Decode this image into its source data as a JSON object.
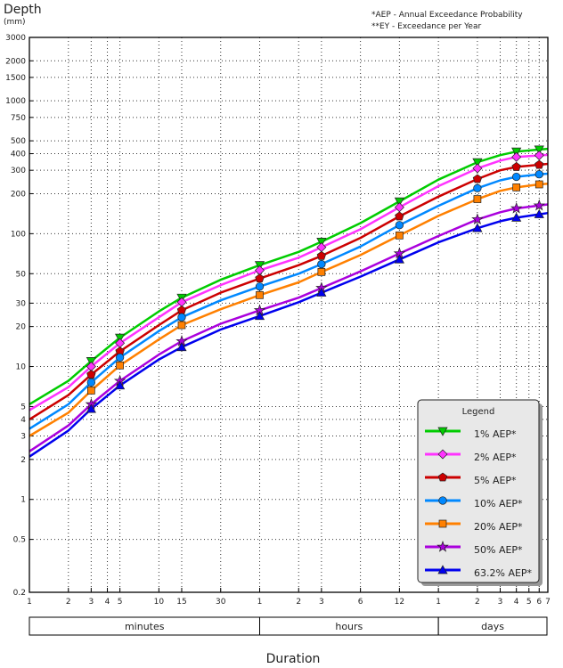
{
  "chart_data": {
    "type": "line",
    "ylabel": "Depth",
    "yunit": "(mm)",
    "xlabel": "Duration",
    "notes": [
      "*AEP - Annual Exceedance Probability",
      "**EY - Exceedance per Year"
    ],
    "yscale": "log",
    "ylim": [
      0.2,
      3000
    ],
    "xscale": "log",
    "xunit_values": "minutes",
    "xlim": [
      1,
      10080
    ],
    "yticks": [
      3000,
      2000,
      1500,
      1000,
      750,
      500,
      400,
      300,
      200,
      100,
      50,
      30,
      20,
      10,
      5,
      4,
      3,
      2,
      1,
      0.5,
      0.2
    ],
    "ytick_labels": [
      "3000",
      "2000",
      "1500",
      "1000",
      "750",
      "500",
      "400",
      "300",
      "200",
      "100",
      "50",
      "30",
      "20",
      "10",
      "5",
      "4",
      "3",
      "2",
      "1",
      "0.5",
      "0.2"
    ],
    "xticks": [
      1,
      2,
      3,
      4,
      5,
      10,
      15,
      30,
      60,
      120,
      180,
      360,
      720,
      1440,
      2880,
      4320,
      5760,
      7200,
      8640,
      10080
    ],
    "xtick_labels": [
      "1",
      "2",
      "3",
      "4",
      "5",
      "10",
      "15",
      "30",
      "1",
      "2",
      "3",
      "6",
      "12",
      "1",
      "2",
      "3",
      "4",
      "5",
      "6",
      "7"
    ],
    "duration_bands": [
      {
        "label": "minutes",
        "from": 1,
        "to": 60
      },
      {
        "label": "hours",
        "from": 60,
        "to": 1440
      },
      {
        "label": "days",
        "from": 1440,
        "to": 10080
      }
    ],
    "grid": true,
    "legend_title": "Legend",
    "legend_position": "bottom-right",
    "x": [
      1,
      2,
      3,
      5,
      10,
      15,
      30,
      60,
      120,
      180,
      360,
      720,
      1440,
      2880,
      4320,
      5760,
      8640,
      10080
    ],
    "marker_x": [
      3,
      5,
      15,
      60,
      180,
      720,
      2880,
      5760,
      8640
    ],
    "series": [
      {
        "name": "1% AEP*",
        "color": "#00cc00",
        "marker": "triangle-down",
        "values": [
          5.2,
          7.8,
          11,
          16.5,
          26,
          33,
          45,
          58,
          73,
          87,
          120,
          175,
          255,
          345,
          390,
          415,
          430,
          435
        ]
      },
      {
        "name": "2% AEP*",
        "color": "#ff33ff",
        "marker": "diamond",
        "values": [
          4.7,
          7,
          10,
          15,
          23.5,
          30.5,
          41,
          53,
          66,
          79,
          108,
          158,
          228,
          310,
          355,
          378,
          388,
          392
        ]
      },
      {
        "name": "5% AEP*",
        "color": "#cc0000",
        "marker": "pentagon",
        "values": [
          4.0,
          6.1,
          8.7,
          13,
          20.5,
          26.5,
          36,
          46,
          58,
          68,
          93,
          135,
          190,
          258,
          300,
          318,
          330,
          335
        ]
      },
      {
        "name": "10% AEP*",
        "color": "#0088ff",
        "marker": "circle",
        "values": [
          3.4,
          5.2,
          7.6,
          11.7,
          18.5,
          23.5,
          31.5,
          40,
          50,
          59,
          80,
          116,
          162,
          220,
          252,
          268,
          280,
          283
        ]
      },
      {
        "name": "20% AEP*",
        "color": "#ff8000",
        "marker": "square",
        "values": [
          3.0,
          4.5,
          6.6,
          10.2,
          16,
          20.5,
          27,
          34.5,
          43,
          51.5,
          69,
          97,
          136,
          182,
          210,
          223,
          235,
          238
        ]
      },
      {
        "name": "50% AEP*",
        "color": "#aa00dd",
        "marker": "star",
        "values": [
          2.3,
          3.6,
          5.2,
          7.8,
          12.3,
          15.5,
          21,
          26.5,
          33,
          39,
          52,
          71,
          96,
          128,
          145,
          155,
          163,
          166
        ]
      },
      {
        "name": "63.2% AEP*",
        "color": "#0000ee",
        "marker": "triangle-up",
        "values": [
          2.1,
          3.3,
          4.8,
          7.2,
          11.3,
          14,
          19,
          24,
          30.5,
          36,
          47.5,
          64,
          86,
          110,
          124,
          132,
          140,
          143
        ]
      }
    ]
  }
}
